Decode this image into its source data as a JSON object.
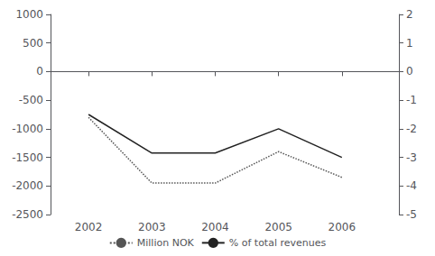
{
  "chart_data": {
    "type": "line",
    "x": [
      2002,
      2003,
      2004,
      2005,
      2006
    ],
    "xlim": [
      2001.4,
      2006.9
    ],
    "xticks": [
      2002,
      2003,
      2004,
      2005,
      2006
    ],
    "ylim": [
      -2500,
      1000
    ],
    "yticks": [
      -2500,
      -2000,
      -1500,
      -1000,
      -500,
      0,
      500,
      1000
    ],
    "y2lim": [
      -5,
      2
    ],
    "y2ticks": [
      -5,
      -4,
      -3,
      -2,
      -1,
      0,
      1,
      2
    ],
    "grid": false,
    "legend": "bottom",
    "series": [
      {
        "name": "Million NOK",
        "color": "#555555",
        "line_style": "dotted",
        "values": [
          -800,
          -1950,
          -1950,
          -1400,
          -1850
        ]
      },
      {
        "name": "% of total revenues",
        "color": "#222222",
        "line_style": "solid",
        "axis": "y2",
        "values": [
          -1.5,
          -2.85,
          -2.85,
          -2.0,
          -3.0
        ]
      }
    ]
  }
}
